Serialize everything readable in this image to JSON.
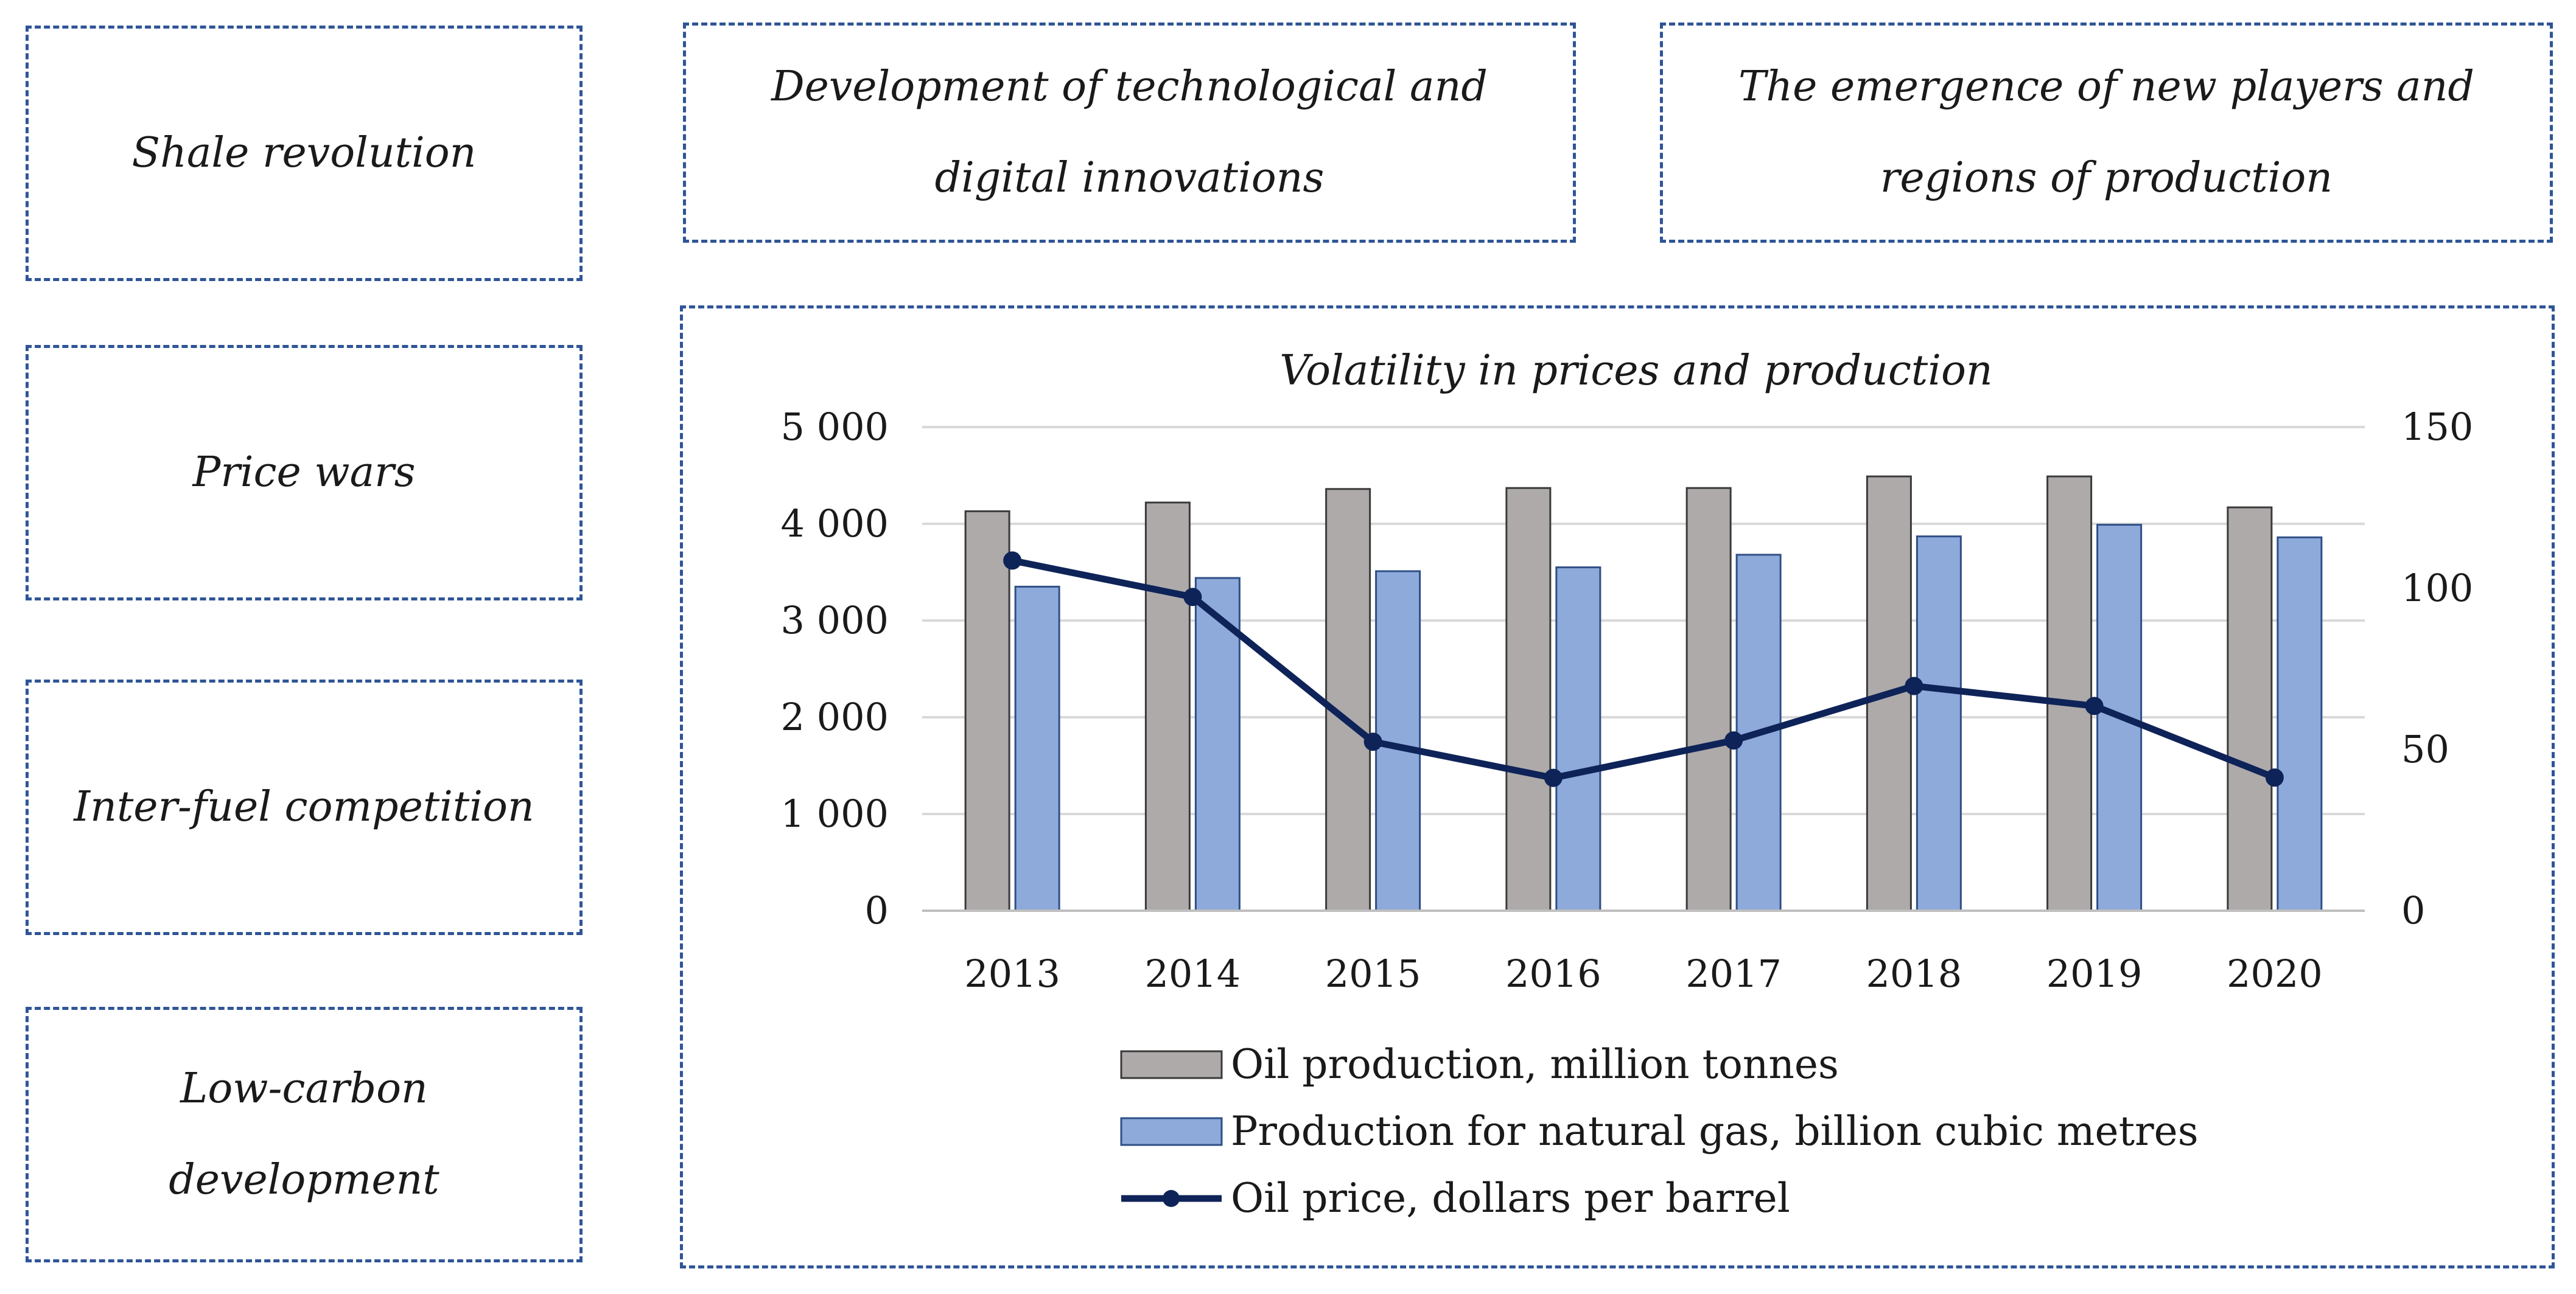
{
  "boxes": {
    "shale": "Shale revolution",
    "price_wars": "Price wars",
    "inter_fuel": "Inter-fuel competition",
    "low_carbon_1": "Low-carbon",
    "low_carbon_2": "development",
    "tech_1": "Development of technological and",
    "tech_2": "digital innovations",
    "players_1": "The emergence of new players and",
    "players_2": "regions of production"
  },
  "colors": {
    "border": "#2f5597",
    "oil_bar": "#aeaaaa",
    "gas_bar": "#8eaadb",
    "price_line": "#0e2358",
    "grid": "#d9d9d9"
  },
  "chart_data": {
    "type": "bar",
    "title": "Volatility in prices and production",
    "categories": [
      "2013",
      "2014",
      "2015",
      "2016",
      "2017",
      "2018",
      "2019",
      "2020"
    ],
    "y_left": {
      "ylim": [
        0,
        5000
      ],
      "ticks": [
        "0",
        "1 000",
        "2 000",
        "3 000",
        "4 000",
        "5 000"
      ],
      "tick_values": [
        0,
        1000,
        2000,
        3000,
        4000,
        5000
      ]
    },
    "y_right": {
      "ylim": [
        0,
        150
      ],
      "ticks": [
        "0",
        "50",
        "100",
        "150"
      ],
      "tick_values": [
        0,
        50,
        100,
        150
      ]
    },
    "grid": true,
    "legend_position": "bottom",
    "series": [
      {
        "name": "Oil production, million tonnes",
        "type": "bar",
        "axis": "left",
        "color": "#aeaaaa",
        "values": [
          4130,
          4220,
          4360,
          4370,
          4370,
          4490,
          4490,
          4170
        ]
      },
      {
        "name": "Production for natural gas, billion cubic metres",
        "type": "bar",
        "axis": "left",
        "color": "#8eaadb",
        "values": [
          3350,
          3440,
          3510,
          3550,
          3680,
          3870,
          3990,
          3860
        ]
      },
      {
        "name": "Oil price, dollars per barrel",
        "type": "line",
        "axis": "right",
        "color": "#0e2358",
        "values": [
          108.6,
          97.3,
          52.4,
          41.2,
          52.8,
          69.7,
          63.5,
          41.3
        ]
      }
    ]
  }
}
